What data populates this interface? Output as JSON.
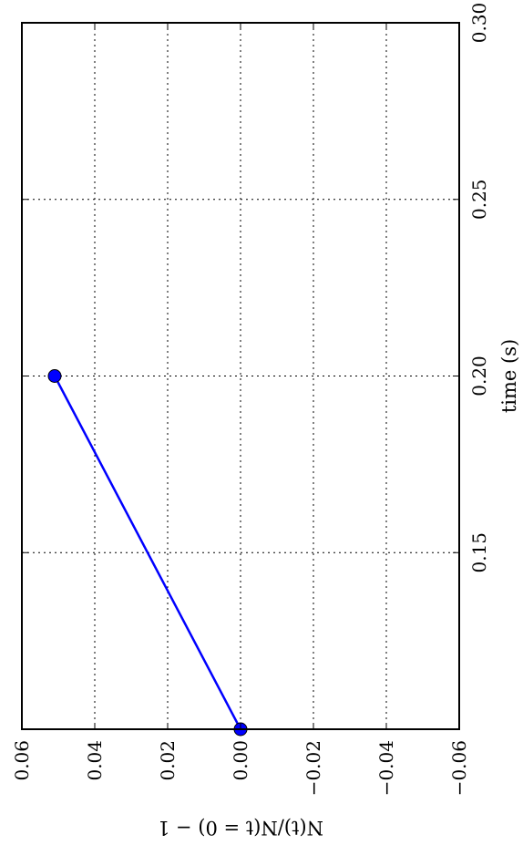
{
  "chart_data": {
    "type": "line",
    "orientation": "rotated-90-clockwise",
    "title": "",
    "xlabel": "time (s)",
    "ylabel": "N(t)/N(t = 0) − 1",
    "xlim": [
      0.1,
      0.3
    ],
    "ylim": [
      -0.06,
      0.06
    ],
    "x_ticks": [
      0.15,
      0.2,
      0.25,
      0.3
    ],
    "x_tick_labels": [
      "0.15",
      "0.20",
      "0.25",
      "0.30"
    ],
    "y_ticks": [
      -0.06,
      -0.04,
      -0.02,
      0.0,
      0.02,
      0.04,
      0.06
    ],
    "y_tick_labels": [
      "−0.06",
      "−0.04",
      "−0.02",
      "0.00",
      "0.02",
      "0.04",
      "0.06"
    ],
    "grid": true,
    "series": [
      {
        "x": [
          0.1,
          0.2
        ],
        "y": [
          0.0,
          0.051
        ],
        "color": "#0000ff",
        "marker": "circle"
      }
    ]
  }
}
